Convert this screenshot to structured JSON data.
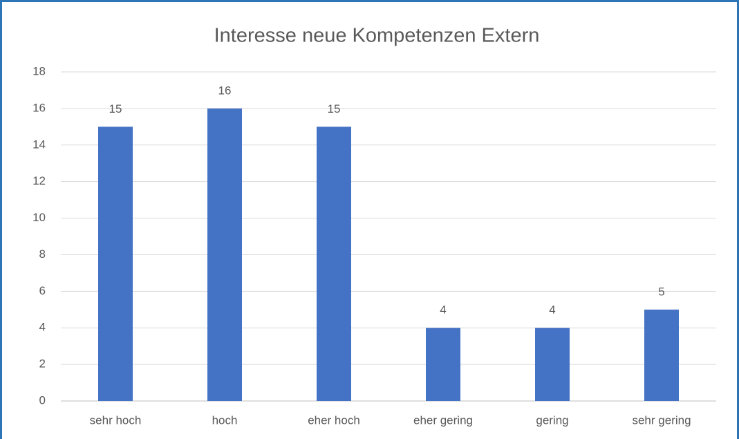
{
  "chart_data": {
    "type": "bar",
    "title": "Interesse neue Kompetenzen Extern",
    "categories": [
      "sehr hoch",
      "hoch",
      "eher hoch",
      "eher gering",
      "gering",
      "sehr gering"
    ],
    "values": [
      15,
      16,
      15,
      4,
      4,
      5
    ],
    "color": "#4472c4",
    "ylim": [
      0,
      18
    ],
    "yticks": [
      0,
      2,
      4,
      6,
      8,
      10,
      12,
      14,
      16,
      18
    ],
    "grid": true
  }
}
